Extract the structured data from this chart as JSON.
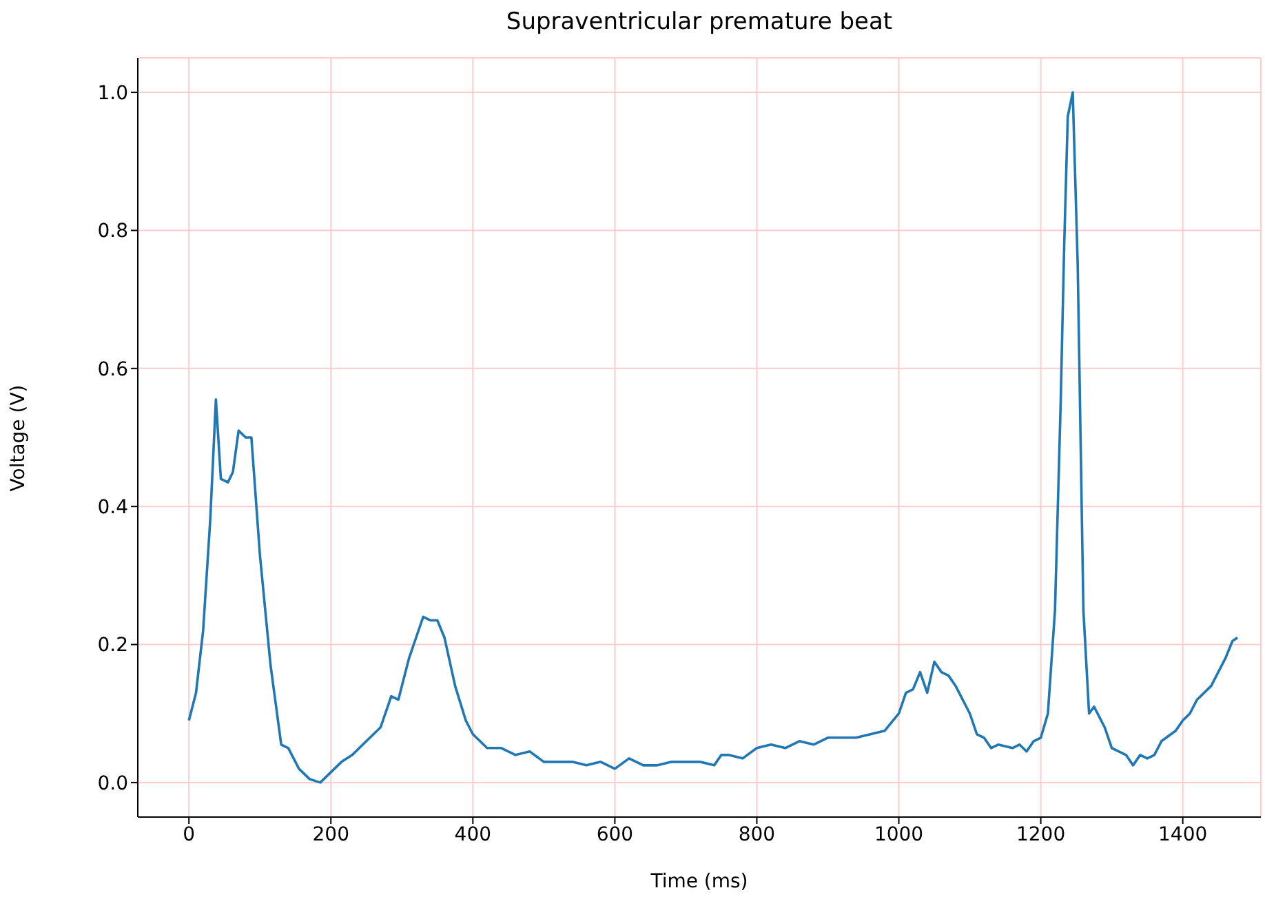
{
  "chart_data": {
    "type": "line",
    "title": "Supraventricular premature beat",
    "xlabel": "Time (ms)",
    "ylabel": "Voltage (V)",
    "x": [
      0,
      10,
      20,
      30,
      38,
      45,
      55,
      62,
      70,
      80,
      88,
      100,
      115,
      130,
      140,
      155,
      170,
      185,
      200,
      215,
      230,
      250,
      270,
      285,
      295,
      310,
      320,
      330,
      340,
      350,
      360,
      375,
      390,
      400,
      420,
      440,
      460,
      480,
      500,
      520,
      540,
      560,
      580,
      600,
      620,
      640,
      660,
      680,
      700,
      720,
      740,
      750,
      760,
      780,
      800,
      820,
      840,
      860,
      880,
      900,
      920,
      940,
      960,
      980,
      1000,
      1010,
      1020,
      1030,
      1040,
      1050,
      1060,
      1070,
      1080,
      1100,
      1110,
      1120,
      1130,
      1140,
      1160,
      1170,
      1180,
      1190,
      1200,
      1210,
      1220,
      1228,
      1233,
      1238,
      1245,
      1252,
      1260,
      1268,
      1275,
      1290,
      1300,
      1320,
      1330,
      1340,
      1350,
      1360,
      1370,
      1390,
      1400,
      1410,
      1420,
      1440,
      1460,
      1470,
      1477
    ],
    "series": [
      {
        "color": "#1f77b4",
        "values": [
          0.09,
          0.13,
          0.22,
          0.38,
          0.555,
          0.44,
          0.435,
          0.45,
          0.51,
          0.5,
          0.5,
          0.33,
          0.17,
          0.055,
          0.05,
          0.02,
          0.005,
          0.0,
          0.015,
          0.03,
          0.04,
          0.06,
          0.08,
          0.125,
          0.12,
          0.18,
          0.21,
          0.24,
          0.235,
          0.235,
          0.21,
          0.14,
          0.09,
          0.07,
          0.05,
          0.05,
          0.04,
          0.045,
          0.03,
          0.03,
          0.03,
          0.025,
          0.03,
          0.02,
          0.035,
          0.025,
          0.025,
          0.03,
          0.03,
          0.03,
          0.025,
          0.04,
          0.04,
          0.035,
          0.05,
          0.055,
          0.05,
          0.06,
          0.055,
          0.065,
          0.065,
          0.065,
          0.07,
          0.075,
          0.1,
          0.13,
          0.135,
          0.16,
          0.13,
          0.175,
          0.16,
          0.155,
          0.14,
          0.1,
          0.07,
          0.065,
          0.05,
          0.055,
          0.05,
          0.055,
          0.045,
          0.06,
          0.065,
          0.1,
          0.25,
          0.55,
          0.78,
          0.965,
          1.0,
          0.75,
          0.25,
          0.1,
          0.11,
          0.08,
          0.05,
          0.04,
          0.025,
          0.04,
          0.035,
          0.04,
          0.06,
          0.075,
          0.09,
          0.1,
          0.12,
          0.14,
          0.18,
          0.205,
          0.21
        ]
      }
    ],
    "xlim": [
      -72,
      1510
    ],
    "ylim": [
      -0.05,
      1.05
    ],
    "xticks": [
      0,
      200,
      400,
      600,
      800,
      1000,
      1200,
      1400
    ],
    "yticks": [
      {
        "value": 0,
        "label": "0.0"
      },
      {
        "value": 0.2,
        "label": "0.2"
      },
      {
        "value": 0.4,
        "label": "0.4"
      },
      {
        "value": 0.6,
        "label": "0.6"
      },
      {
        "value": 0.8,
        "label": "0.8"
      },
      {
        "value": 1,
        "label": "1.0"
      }
    ],
    "grid": true,
    "line_style": "solid",
    "marker": "none"
  }
}
